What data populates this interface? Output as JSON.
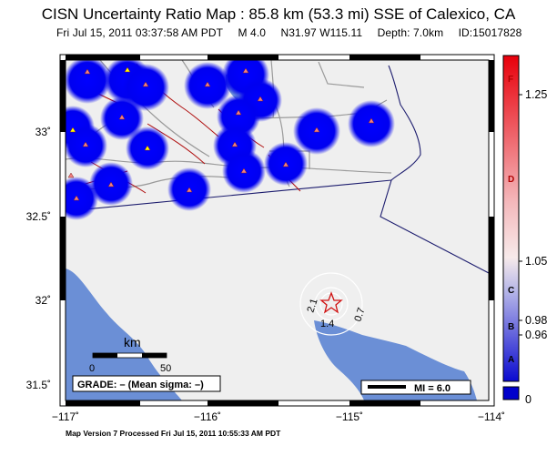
{
  "header": {
    "title": "CISN Uncertainty Ratio Map : 85.8 km (53.3 mi) SSE of Calexico, CA",
    "date": "Fri Jul 15, 2011 03:37:58 AM PDT",
    "magnitude": "M 4.0",
    "location": "N31.97 W115.11",
    "depth": "Depth: 7.0km",
    "event_id": "ID:15017828"
  },
  "axes": {
    "lat_ticks": [
      "33˚",
      "32.5˚",
      "32˚",
      "31.5˚"
    ],
    "lon_ticks": [
      "−117˚",
      "−116˚",
      "−115˚",
      "−114˚"
    ]
  },
  "scale_bar": {
    "unit": "km",
    "start": "0",
    "end": "50"
  },
  "grade_box": {
    "text": "GRADE: – (Mean sigma: –)"
  },
  "mi_legend": {
    "text": "MI = 6.0"
  },
  "epicenter_labels": [
    "2.1",
    "1.4",
    "0.7"
  ],
  "colorbar": {
    "letters": [
      "F",
      "D",
      "C",
      "B",
      "A"
    ],
    "values": [
      "1.25",
      "1.05",
      "0.98",
      "0.96",
      "0"
    ],
    "colors": {
      "top": "#e8000b",
      "mid": "#f7eaea",
      "bottom": "#0000cc"
    }
  },
  "footer": {
    "text": "Map Version 7 Processed Fri Jul 15, 2011 10:55:33 AM PDT"
  }
}
